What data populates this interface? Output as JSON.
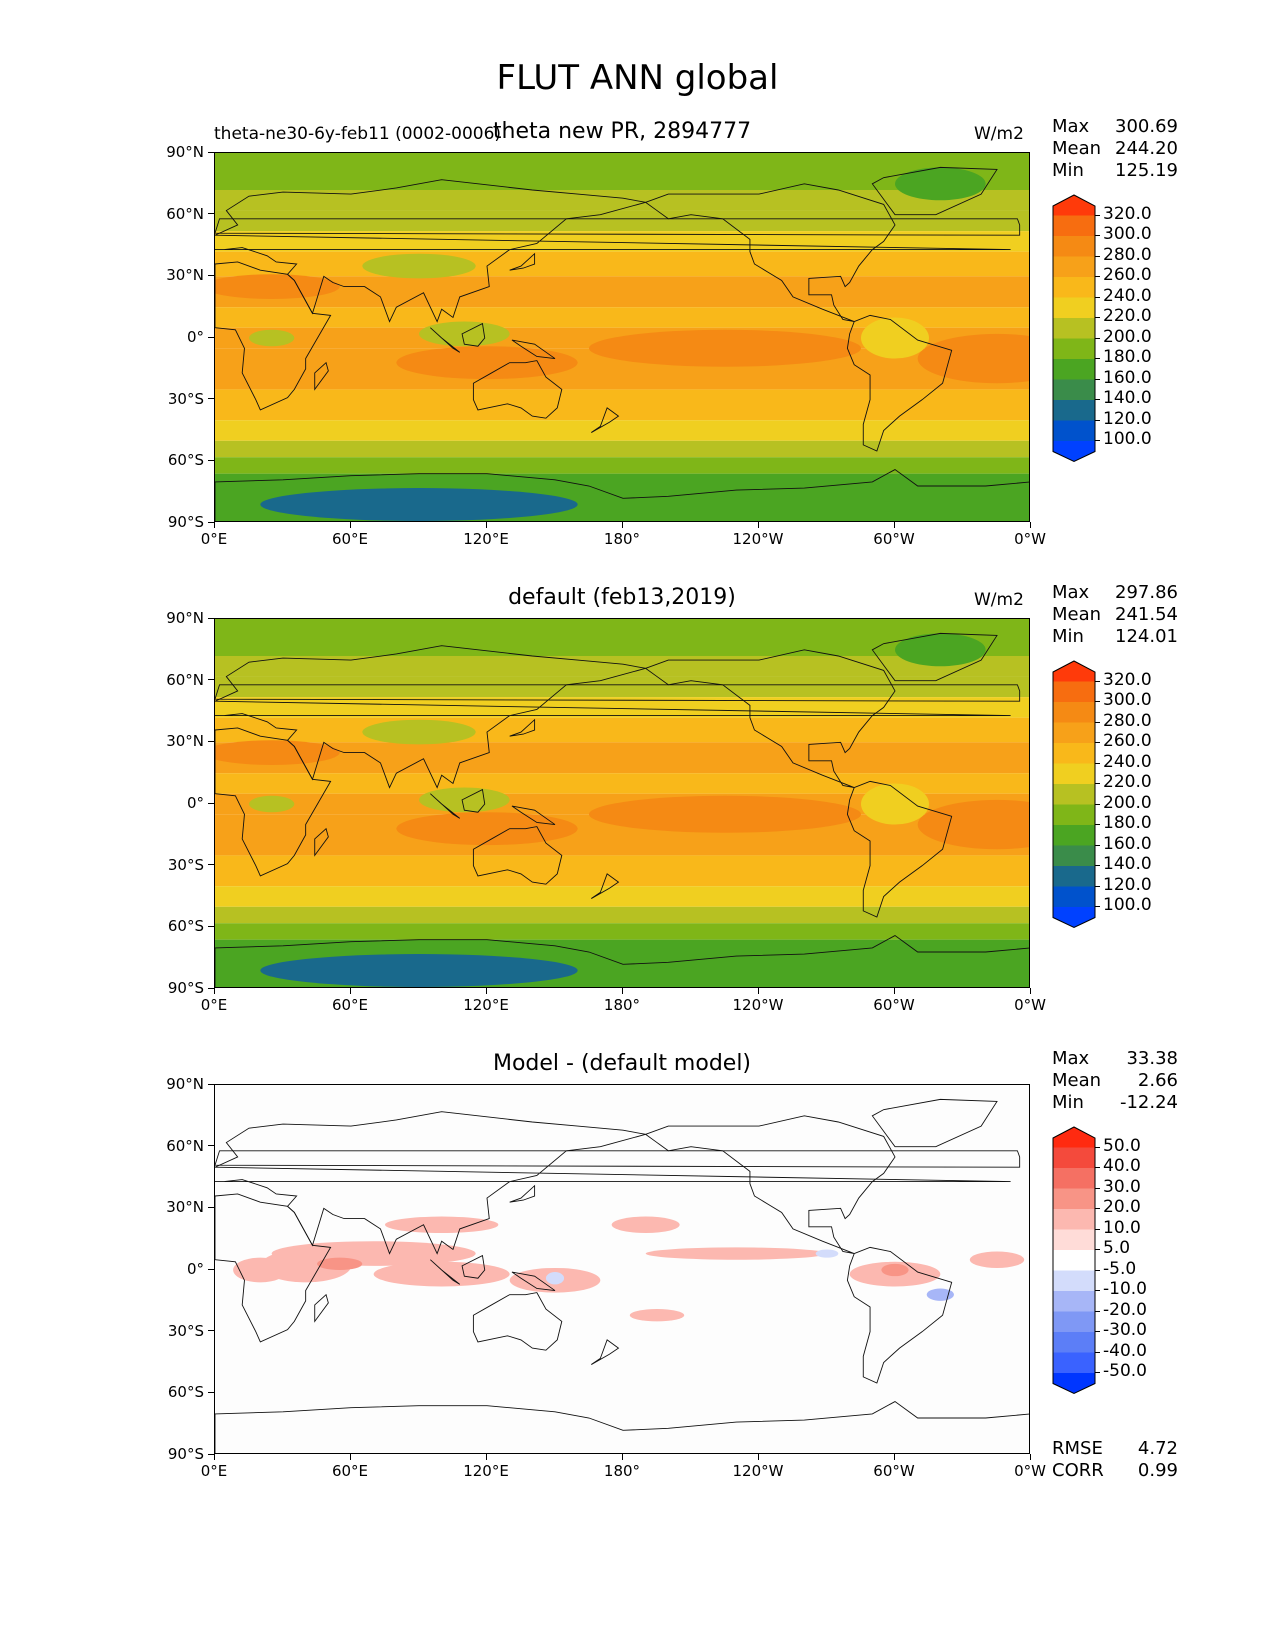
{
  "figure": {
    "title": "FLUT ANN global",
    "units": "W/m2"
  },
  "panels": [
    {
      "id": "test",
      "title": "theta new PR, 2894777",
      "subtitle": "theta-ne30-6y-feb11 (0002-0006)",
      "units": "W/m2",
      "stats": [
        {
          "label": "Max",
          "value": "300.69"
        },
        {
          "label": "Mean",
          "value": "244.20"
        },
        {
          "label": "Min",
          "value": "125.19"
        }
      ],
      "colorbar_labels": [
        "320.0",
        "300.0",
        "280.0",
        "260.0",
        "240.0",
        "220.0",
        "200.0",
        "180.0",
        "160.0",
        "140.0",
        "120.0",
        "100.0"
      ]
    },
    {
      "id": "reference",
      "title": "default (feb13,2019)",
      "subtitle": "",
      "units": "W/m2",
      "stats": [
        {
          "label": "Max",
          "value": "297.86"
        },
        {
          "label": "Mean",
          "value": "241.54"
        },
        {
          "label": "Min",
          "value": "124.01"
        }
      ],
      "colorbar_labels": [
        "320.0",
        "300.0",
        "280.0",
        "260.0",
        "240.0",
        "220.0",
        "200.0",
        "180.0",
        "160.0",
        "140.0",
        "120.0",
        "100.0"
      ]
    },
    {
      "id": "difference",
      "title": "Model - (default model)",
      "subtitle": "",
      "units": "",
      "stats": [
        {
          "label": "Max",
          "value": "33.38"
        },
        {
          "label": "Mean",
          "value": "2.66"
        },
        {
          "label": "Min",
          "value": "-12.24"
        }
      ],
      "colorbar_labels": [
        "50.0",
        "40.0",
        "30.0",
        "20.0",
        "10.0",
        "5.0",
        "-5.0",
        "-10.0",
        "-20.0",
        "-30.0",
        "-40.0",
        "-50.0"
      ],
      "extra_stats": [
        {
          "label": "RMSE",
          "value": "4.72"
        },
        {
          "label": "CORR",
          "value": "0.99"
        }
      ]
    }
  ],
  "axes": {
    "x_ticks": [
      "0°E",
      "60°E",
      "120°E",
      "180°",
      "120°W",
      "60°W",
      "0°W"
    ],
    "y_ticks": [
      "90°N",
      "60°N",
      "30°N",
      "0°",
      "30°S",
      "60°S",
      "90°S"
    ]
  },
  "colors": {
    "field_scale": [
      "#0041ff",
      "#0052cc",
      "#19698c",
      "#3a8c4a",
      "#4ba522",
      "#7fb618",
      "#b7c122",
      "#f0cf20",
      "#f9b81a",
      "#f7a119",
      "#f58a14",
      "#f76d10",
      "#ff3a0a"
    ],
    "diff_scale": [
      "#0036ff",
      "#3a62ff",
      "#5c7ef7",
      "#7f98f5",
      "#a7b6f7",
      "#d3dcfb",
      "#ffffff",
      "#ffdcd8",
      "#fcb8b0",
      "#f89486",
      "#f57063",
      "#f44a3c",
      "#ff2a10"
    ]
  },
  "chart_data": [
    {
      "type": "heatmap",
      "title": "theta new PR, 2894777",
      "variable": "FLUT",
      "units": "W/m2",
      "x": "longitude 0°E–0°W",
      "y": "latitude 90°S–90°N",
      "levels": [
        100,
        120,
        140,
        160,
        180,
        200,
        220,
        240,
        260,
        280,
        300,
        320
      ],
      "stats": {
        "max": 300.69,
        "mean": 244.2,
        "min": 125.19
      }
    },
    {
      "type": "heatmap",
      "title": "default (feb13,2019)",
      "variable": "FLUT",
      "units": "W/m2",
      "levels": [
        100,
        120,
        140,
        160,
        180,
        200,
        220,
        240,
        260,
        280,
        300,
        320
      ],
      "stats": {
        "max": 297.86,
        "mean": 241.54,
        "min": 124.01
      }
    },
    {
      "type": "heatmap",
      "title": "Model - (default model)",
      "variable": "FLUT difference",
      "levels": [
        -50,
        -40,
        -30,
        -20,
        -10,
        -5,
        5,
        10,
        20,
        30,
        40,
        50
      ],
      "stats": {
        "max": 33.38,
        "mean": 2.66,
        "min": -12.24,
        "rmse": 4.72,
        "corr": 0.99
      }
    }
  ]
}
